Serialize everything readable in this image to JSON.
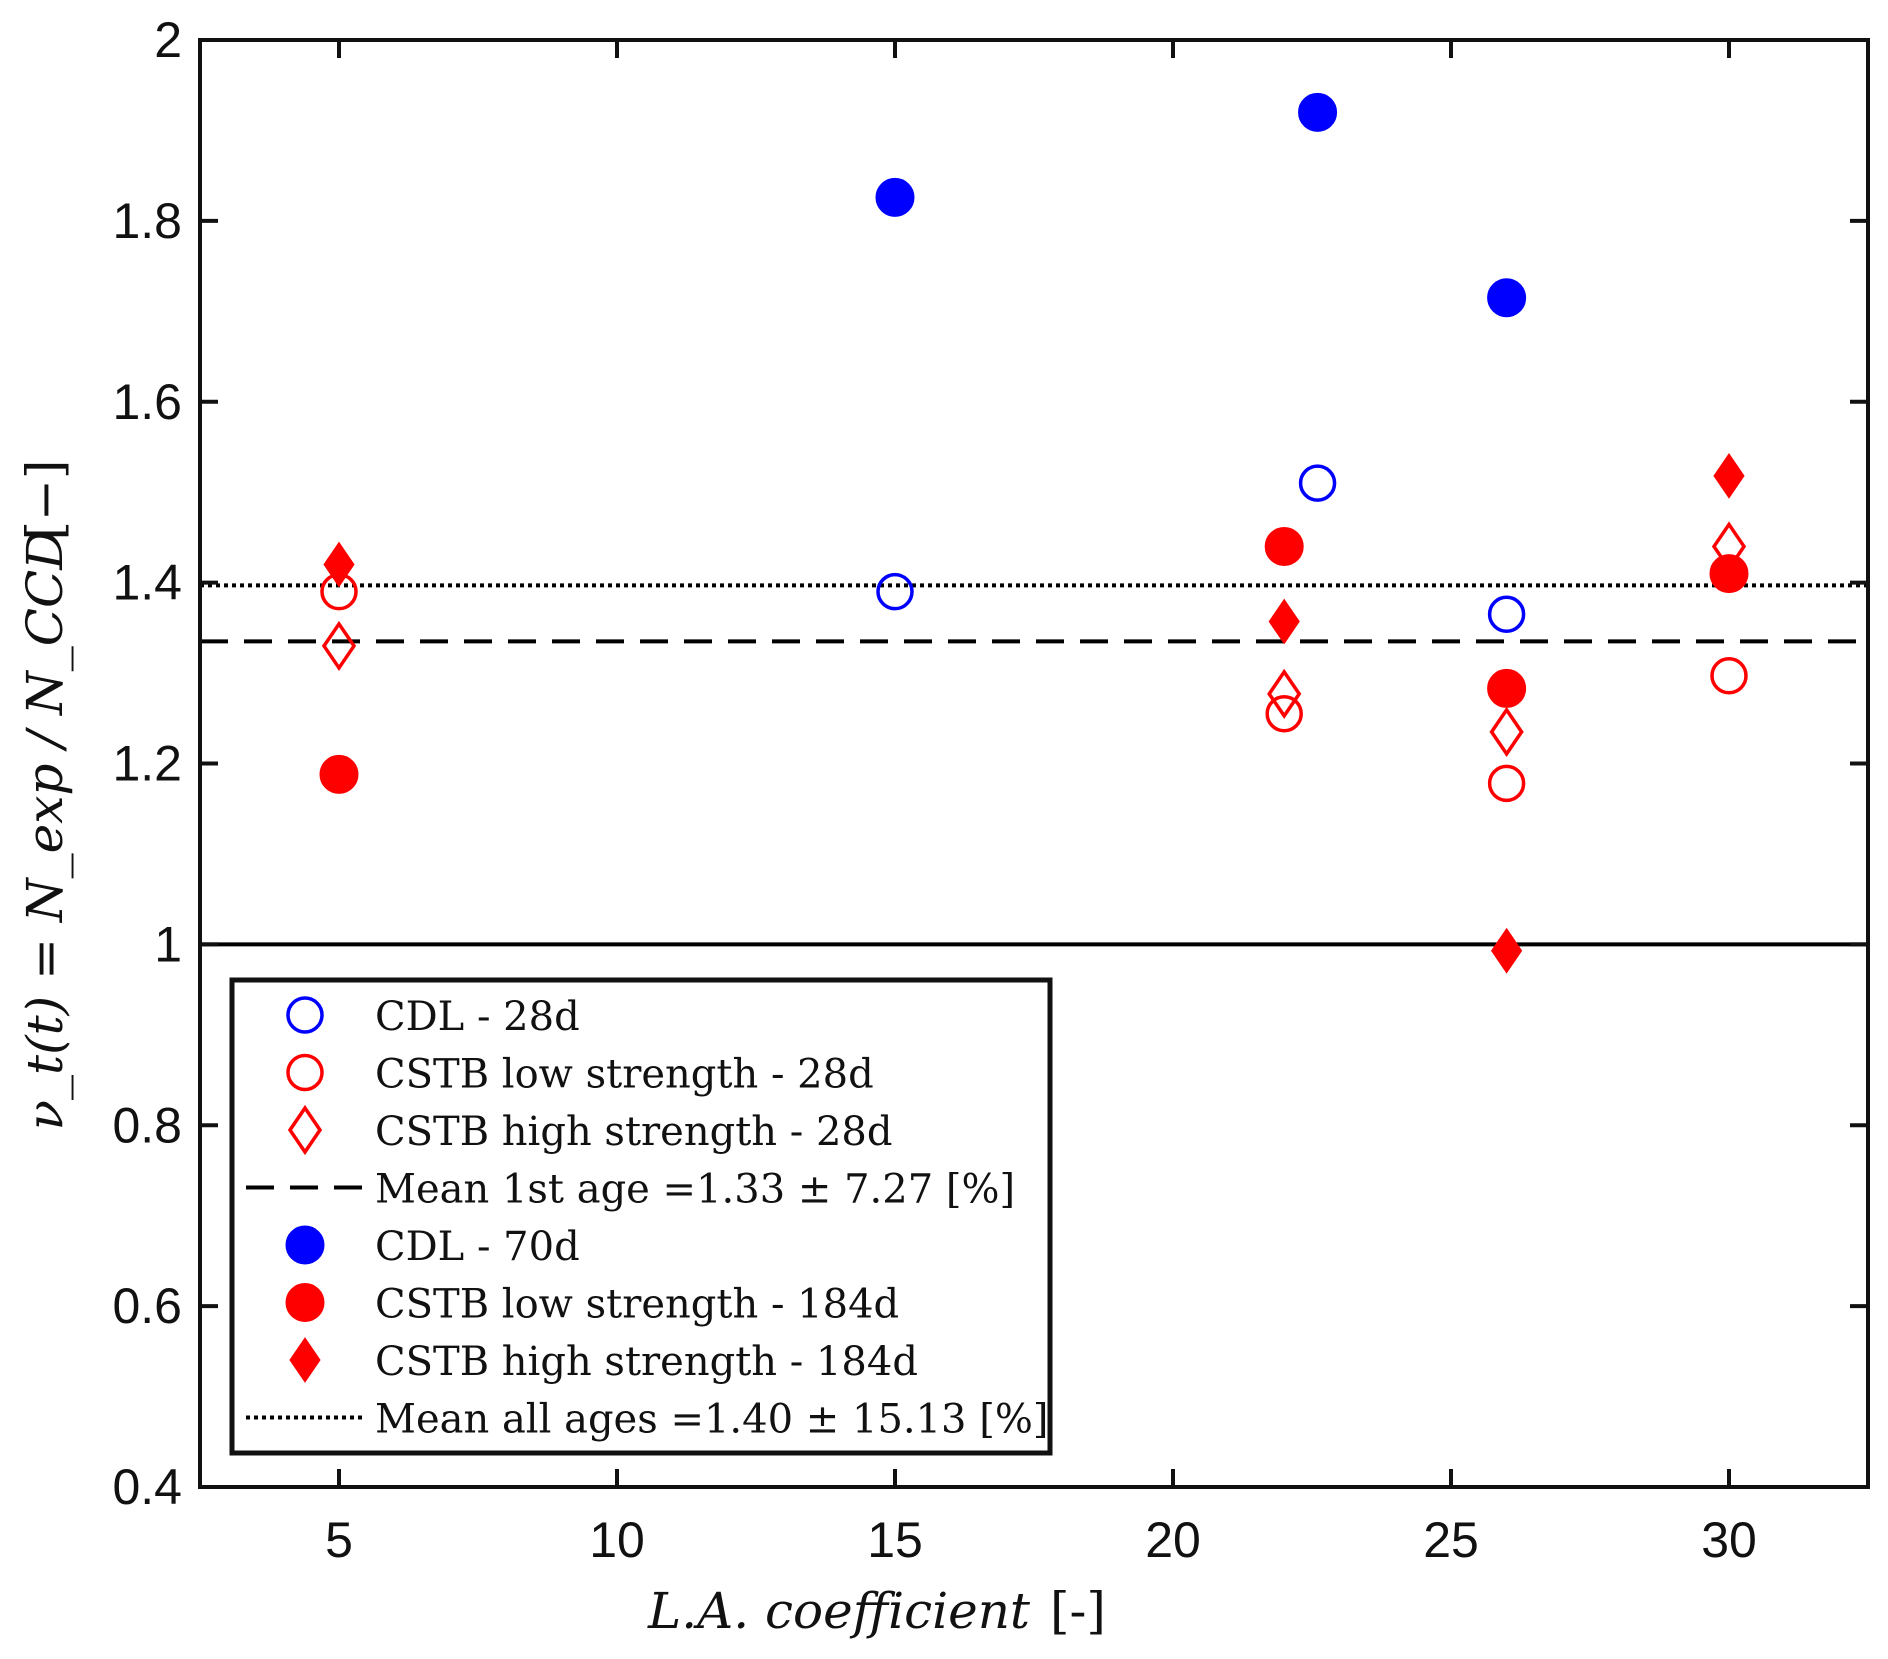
{
  "chart_data": {
    "type": "scatter",
    "title": "",
    "xlabel": "L.A. coefficient",
    "xlabel_unit": "[-]",
    "ylabel": "ν_t(t) = N_exp / N_CCD",
    "ylabel_unit": "[−]",
    "xlim": [
      2.5,
      32.5
    ],
    "ylim": [
      0.4,
      2.0
    ],
    "xticks": [
      5,
      10,
      15,
      20,
      25,
      30
    ],
    "yticks": [
      0.4,
      0.6,
      0.8,
      1,
      1.2,
      1.4,
      1.6,
      1.8,
      2
    ],
    "ytick_labels": [
      "0.4",
      "0.6",
      "0.8",
      "1",
      "1.2",
      "1.4",
      "1.6",
      "1.8",
      "2"
    ],
    "series": [
      {
        "name": "CDL - 28d",
        "marker": "circle-open",
        "color": "#0000ff",
        "points": [
          [
            15,
            1.39
          ],
          [
            22.6,
            1.51
          ],
          [
            26,
            1.365
          ]
        ]
      },
      {
        "name": "CSTB low strength - 28d",
        "marker": "circle-open",
        "color": "#ff0000",
        "points": [
          [
            5,
            1.39
          ],
          [
            22,
            1.255
          ],
          [
            26,
            1.178
          ],
          [
            30,
            1.297
          ]
        ]
      },
      {
        "name": "CSTB high strength - 28d",
        "marker": "diamond-open",
        "color": "#ff0000",
        "points": [
          [
            5,
            1.33
          ],
          [
            22,
            1.277
          ],
          [
            26,
            1.235
          ],
          [
            30,
            1.44
          ]
        ]
      },
      {
        "name": "Mean 1st age =1.33 ± 7.27 [%]",
        "marker": "line-dashed",
        "color": "#000000",
        "y": 1.335
      },
      {
        "name": "CDL - 70d",
        "marker": "circle-filled",
        "color": "#0000ff",
        "points": [
          [
            15,
            1.826
          ],
          [
            22.6,
            1.92
          ],
          [
            26,
            1.715
          ]
        ]
      },
      {
        "name": "CSTB low strength - 184d",
        "marker": "circle-filled",
        "color": "#ff0000",
        "points": [
          [
            5,
            1.188
          ],
          [
            22,
            1.44
          ],
          [
            26,
            1.283
          ],
          [
            30,
            1.41
          ]
        ]
      },
      {
        "name": "CSTB high strength - 184d",
        "marker": "diamond-filled",
        "color": "#ff0000",
        "points": [
          [
            5,
            1.42
          ],
          [
            22,
            1.357
          ],
          [
            26,
            0.993
          ],
          [
            30,
            1.518
          ]
        ]
      },
      {
        "name": "Mean all ages =1.40 ± 15.13 [%]",
        "marker": "line-dotted",
        "color": "#000000",
        "y": 1.397
      }
    ],
    "reference_line": {
      "y": 1.0,
      "color": "#000000"
    },
    "legend_location": "lower-left"
  }
}
